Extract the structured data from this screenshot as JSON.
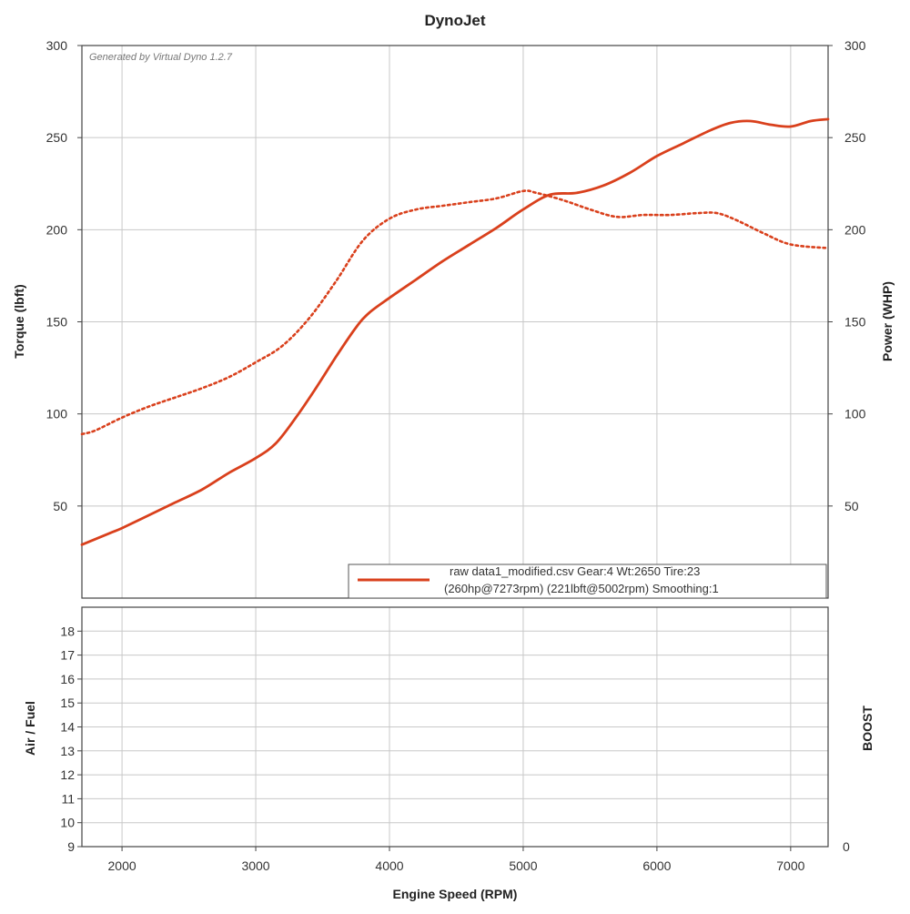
{
  "chart_data": {
    "type": "line",
    "title": "DynoJet",
    "watermark": "Generated by Virtual Dyno 1.2.7",
    "xlabel": "Engine Speed (RPM)",
    "xlim": [
      1700,
      7280
    ],
    "xticks": [
      "2000",
      "3000",
      "4000",
      "5000",
      "6000",
      "7000"
    ],
    "xtick_values": [
      2000,
      3000,
      4000,
      5000,
      6000,
      7000
    ],
    "top_panel": {
      "ylabel_left": "Torque (lbft)",
      "ylabel_right": "Power (WHP)",
      "ylim": [
        0,
        300
      ],
      "yticks_left": [
        "50",
        "100",
        "150",
        "200",
        "250",
        "300"
      ],
      "yticks_right": [
        "50",
        "100",
        "150",
        "200",
        "250",
        "300"
      ],
      "ytick_values": [
        50,
        100,
        150,
        200,
        250,
        300
      ],
      "grid": true,
      "series": [
        {
          "style": "solid",
          "color": "#d9401c",
          "x": [
            1700,
            1900,
            2000,
            2200,
            2400,
            2600,
            2800,
            3000,
            3150,
            3300,
            3450,
            3600,
            3750,
            3850,
            4000,
            4200,
            4400,
            4600,
            4800,
            5000,
            5200,
            5400,
            5600,
            5800,
            6000,
            6200,
            6400,
            6550,
            6700,
            6850,
            7000,
            7150,
            7280
          ],
          "y": [
            29,
            35,
            38,
            45,
            52,
            59,
            68,
            76,
            84,
            98,
            114,
            131,
            147,
            155,
            163,
            173,
            183,
            192,
            201,
            211,
            219,
            220,
            224,
            231,
            240,
            247,
            254,
            258,
            259,
            257,
            256,
            259,
            260
          ]
        },
        {
          "style": "dotted",
          "color": "#d9401c",
          "x": [
            1700,
            1800,
            2000,
            2200,
            2400,
            2600,
            2800,
            3000,
            3200,
            3400,
            3600,
            3800,
            4000,
            4200,
            4400,
            4600,
            4800,
            5000,
            5100,
            5300,
            5500,
            5700,
            5900,
            6100,
            6300,
            6450,
            6600,
            6800,
            7000,
            7280
          ],
          "y": [
            89,
            91,
            98,
            104,
            109,
            114,
            120,
            128,
            137,
            152,
            172,
            194,
            206,
            211,
            213,
            215,
            217,
            221,
            220,
            216,
            211,
            207,
            208,
            208,
            209,
            209,
            205,
            198,
            192,
            190
          ]
        }
      ],
      "legend": {
        "placement": "bottom-right",
        "line1": "raw data1_modified.csv Gear:4 Wt:2650 Tire:23",
        "line2": "(260hp@7273rpm) (221lbft@5002rpm) Smoothing:1"
      }
    },
    "bottom_panel": {
      "ylabel_left": "Air / Fuel",
      "ylabel_right": "BOOST",
      "ylim": [
        9,
        19
      ],
      "yticks_left": [
        "9",
        "10",
        "11",
        "12",
        "13",
        "14",
        "15",
        "16",
        "17",
        "18"
      ],
      "ytick_values": [
        9,
        10,
        11,
        12,
        13,
        14,
        15,
        16,
        17,
        18
      ],
      "yticks_right": [
        "0"
      ],
      "grid": true,
      "series": []
    }
  }
}
